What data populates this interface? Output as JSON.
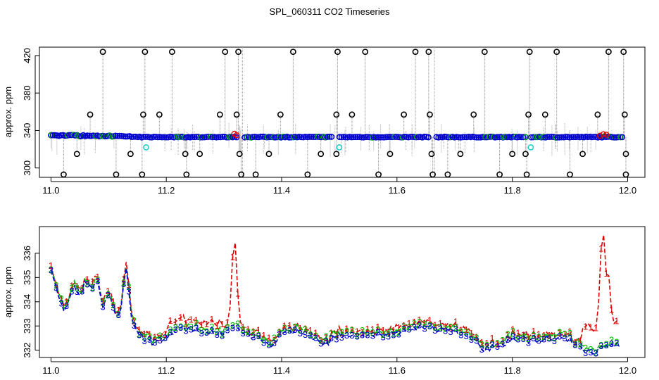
{
  "title": "SPL_060311  CO2 Timeseries",
  "colors": {
    "s1": "#dd0000",
    "s2": "#00bb00",
    "s3": "#0000cc",
    "outlier": "#000000",
    "cyan": "#22cccc",
    "spike": "#888888"
  },
  "chart_data": [
    {
      "type": "scatter",
      "ylabel": "approx. ppm",
      "xlim": [
        10.98,
        12.03
      ],
      "ylim": [
        290,
        429
      ],
      "xticks": [
        11.0,
        11.2,
        11.4,
        11.6,
        11.8,
        12.0
      ],
      "xtick_labels": [
        "11.0",
        "11.2",
        "11.4",
        "11.6",
        "11.8",
        "12.0"
      ],
      "yticks": [
        300,
        340,
        380,
        420
      ],
      "ytick_labels": [
        "300",
        "340",
        "380",
        "420"
      ],
      "outliers_high": [
        {
          "x": 11.09,
          "y": 424
        },
        {
          "x": 11.163,
          "y": 424
        },
        {
          "x": 11.21,
          "y": 424
        },
        {
          "x": 11.302,
          "y": 424
        },
        {
          "x": 11.325,
          "y": 424
        },
        {
          "x": 11.42,
          "y": 424
        },
        {
          "x": 11.497,
          "y": 424
        },
        {
          "x": 11.545,
          "y": 424
        },
        {
          "x": 11.632,
          "y": 424
        },
        {
          "x": 11.655,
          "y": 424
        },
        {
          "x": 11.752,
          "y": 424
        },
        {
          "x": 11.83,
          "y": 424
        },
        {
          "x": 11.877,
          "y": 424
        },
        {
          "x": 11.967,
          "y": 424
        },
        {
          "x": 11.993,
          "y": 424
        }
      ],
      "outliers_mid_high": [
        {
          "x": 11.068,
          "y": 357
        },
        {
          "x": 11.16,
          "y": 357
        },
        {
          "x": 11.188,
          "y": 357
        },
        {
          "x": 11.293,
          "y": 357
        },
        {
          "x": 11.322,
          "y": 357
        },
        {
          "x": 11.398,
          "y": 357
        },
        {
          "x": 11.495,
          "y": 357
        },
        {
          "x": 11.522,
          "y": 357
        },
        {
          "x": 11.612,
          "y": 357
        },
        {
          "x": 11.657,
          "y": 357
        },
        {
          "x": 11.733,
          "y": 357
        },
        {
          "x": 11.828,
          "y": 357
        },
        {
          "x": 11.857,
          "y": 357
        },
        {
          "x": 11.948,
          "y": 357
        },
        {
          "x": 11.995,
          "y": 357
        }
      ],
      "outliers_mid_low": [
        {
          "x": 11.045,
          "y": 315
        },
        {
          "x": 11.138,
          "y": 315
        },
        {
          "x": 11.233,
          "y": 315
        },
        {
          "x": 11.258,
          "y": 315
        },
        {
          "x": 11.327,
          "y": 315
        },
        {
          "x": 11.378,
          "y": 315
        },
        {
          "x": 11.468,
          "y": 315
        },
        {
          "x": 11.495,
          "y": 315
        },
        {
          "x": 11.588,
          "y": 315
        },
        {
          "x": 11.66,
          "y": 315
        },
        {
          "x": 11.71,
          "y": 315
        },
        {
          "x": 11.8,
          "y": 315
        },
        {
          "x": 11.823,
          "y": 315
        },
        {
          "x": 11.922,
          "y": 315
        },
        {
          "x": 11.997,
          "y": 315
        }
      ],
      "outliers_low": [
        {
          "x": 11.022,
          "y": 293
        },
        {
          "x": 11.113,
          "y": 293
        },
        {
          "x": 11.158,
          "y": 293
        },
        {
          "x": 11.235,
          "y": 293
        },
        {
          "x": 11.33,
          "y": 293
        },
        {
          "x": 11.355,
          "y": 293
        },
        {
          "x": 11.445,
          "y": 293
        },
        {
          "x": 11.568,
          "y": 293
        },
        {
          "x": 11.662,
          "y": 293
        },
        {
          "x": 11.688,
          "y": 293
        },
        {
          "x": 11.778,
          "y": 293
        },
        {
          "x": 11.825,
          "y": 293
        },
        {
          "x": 11.9,
          "y": 293
        },
        {
          "x": 11.997,
          "y": 293
        }
      ],
      "cyan_points": [
        {
          "x": 11.165,
          "y": 322
        },
        {
          "x": 11.5,
          "y": 322
        },
        {
          "x": 11.832,
          "y": 322
        }
      ]
    },
    {
      "type": "line",
      "ylabel": "approx. ppm",
      "xlim": [
        10.98,
        12.03
      ],
      "ylim": [
        331.7,
        337.1
      ],
      "xticks": [
        11.0,
        11.2,
        11.4,
        11.6,
        11.8,
        12.0
      ],
      "xtick_labels": [
        "11.0",
        "11.2",
        "11.4",
        "11.6",
        "11.8",
        "12.0"
      ],
      "yticks": [
        332,
        333,
        334,
        335,
        336
      ],
      "ytick_labels": [
        "332",
        "333",
        "334",
        "335",
        "336"
      ],
      "series": [
        {
          "name": "1",
          "color": "#dd0000",
          "marker": "1"
        },
        {
          "name": "2",
          "color": "#00bb00",
          "marker": "2"
        },
        {
          "name": "3",
          "color": "#0000cc",
          "marker": "3"
        }
      ]
    }
  ]
}
